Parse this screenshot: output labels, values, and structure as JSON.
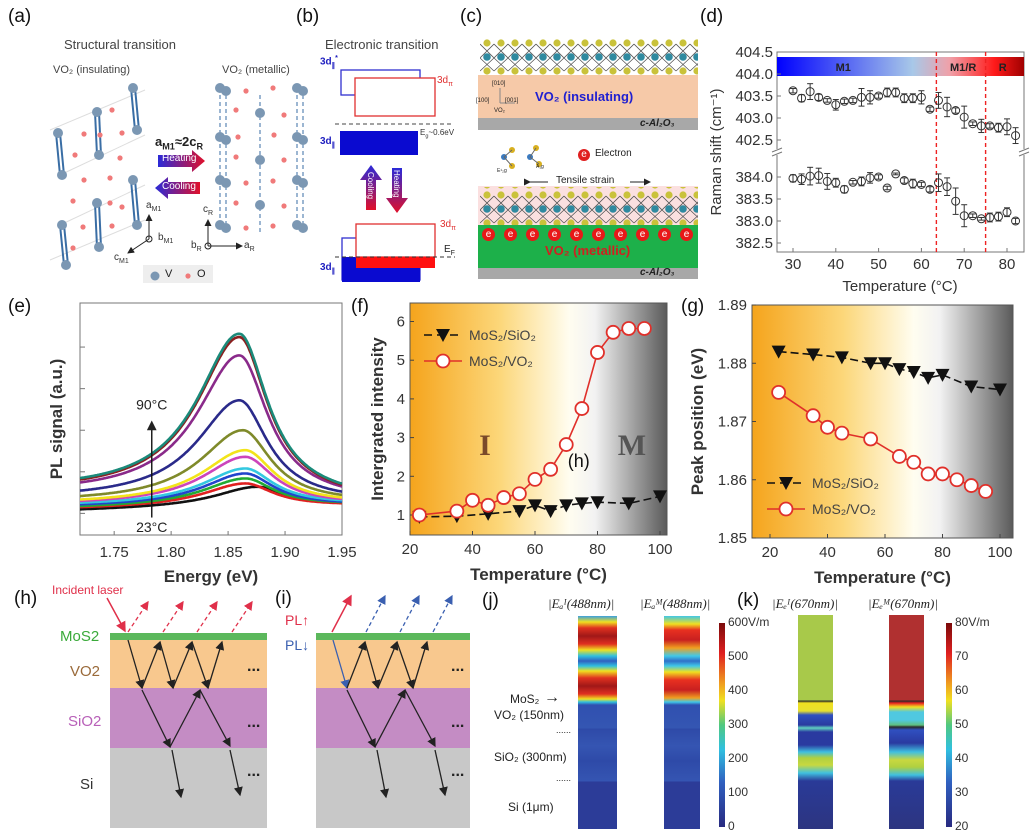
{
  "panel_labels": {
    "a": "(a)",
    "b": "(b)",
    "c": "(c)",
    "d": "(d)",
    "e": "(e)",
    "f": "(f)",
    "g": "(g)",
    "h": "(h)",
    "i": "(i)",
    "j": "(j)",
    "k": "(k)"
  },
  "a": {
    "title": "Structural transition",
    "insulating": "VO₂ (insulating)",
    "metallic": "VO₂ (metallic)",
    "relation": {
      "a": "a",
      "a_sub": "M1",
      "mid": "≈2c",
      "c_sub": "R"
    },
    "heating": "Heating",
    "cooling": "Cooling",
    "axes_m1": {
      "a": "a",
      "a_sub": "M1",
      "b": "b",
      "b_sub": "M1",
      "c": "c",
      "c_sub": "M1"
    },
    "axes_r": {
      "c": "c",
      "c_sub": "R",
      "b": "b",
      "b_sub": "R",
      "a": "a",
      "a_sub": "R"
    },
    "legend": {
      "v": "V",
      "o": "O"
    },
    "colors": {
      "v_atom": "#7b97b3",
      "o_atom": "#f07a7a",
      "bond": "#3a6ea5"
    }
  },
  "b": {
    "title": "Electronic transition",
    "d_par_star": {
      "main": "3d",
      "sub": "∥",
      "sup": "*"
    },
    "d_pi_top": {
      "main": "3d",
      "sub": "π"
    },
    "gap": {
      "main": "E",
      "sub": "g",
      "rest": "~0.6eV"
    },
    "d_par_top": {
      "main": "3d",
      "sub": "∥"
    },
    "cooling": "Cooling",
    "heating": "Heating",
    "d_pi_bottom": {
      "main": "3d",
      "sub": "π"
    },
    "ef": {
      "main": "E",
      "sub": "F"
    },
    "d_par_bottom": {
      "main": "3d",
      "sub": "∥"
    }
  },
  "c": {
    "insulating": "VO₂ (insulating)",
    "metallic": "VO₂ (metallic)",
    "substrate_top": "c-Al₂O₃",
    "substrate_bottom": "c-Al₂O₃",
    "axes": {
      "y": "[010]",
      "x": "[100]",
      "z": "[001]",
      "name": "VO₂"
    },
    "modes": {
      "e2g": "E¹₂g",
      "a1g": "A₁g"
    },
    "electron_symbol": "e",
    "electron_label": "Electron",
    "strain": "Tensile strain"
  },
  "h": {
    "incident": "Incident laser",
    "layers": {
      "mos2": "MoS2",
      "vo2": "VO2",
      "sio2": "SiO2",
      "si": "Si"
    },
    "dots": "..."
  },
  "i": {
    "pl_up": "PL↑",
    "pl_down": "PL↓",
    "dots": "..."
  },
  "j": {
    "titles": [
      "|Eₐᴵ(488nm)|",
      "|Eₐᴹ(488nm)|"
    ],
    "layers": {
      "mos2": "MoS₂",
      "vo2": "VO₂ (150nm)",
      "sep1": "......",
      "sio2": "SiO₂ (300nm)",
      "sep2": "......",
      "si": "Si (1μm)"
    },
    "colorbar_ticks": [
      "600V/m",
      "500",
      "400",
      "300",
      "200",
      "100",
      "0"
    ]
  },
  "k": {
    "titles": [
      "|Eₑᴵ(670nm)|",
      "|Eₑᴹ(670nm)|"
    ],
    "colorbar_ticks": [
      "80V/m",
      "70",
      "60",
      "50",
      "40",
      "30",
      "20"
    ]
  },
  "chart_data": [
    {
      "panel": "d",
      "type": "scatter",
      "xlabel": "Temperature (°C)",
      "ylabel": "Raman shift (cm⁻¹)",
      "xlim": [
        26,
        84
      ],
      "x_tick_labels": [
        "30",
        "40",
        "50",
        "60",
        "70",
        "80"
      ],
      "y_tick_labels_upper": [
        "404.5",
        "404.0",
        "403.5",
        "403.0",
        "402.5"
      ],
      "y_tick_labels_lower": [
        "384.0",
        "383.5",
        "383.0",
        "382.5"
      ],
      "broken_y_axis": true,
      "phase_bar": {
        "labels": [
          "M1",
          "M1/R",
          "R"
        ],
        "boundaries": [
          63.5,
          75
        ]
      },
      "x": [
        30,
        32,
        34,
        36,
        38,
        40,
        42,
        44,
        46,
        48,
        50,
        52,
        54,
        56,
        58,
        60,
        62,
        64,
        66,
        68,
        70,
        72,
        74,
        76,
        78,
        80,
        82
      ],
      "series": [
        {
          "values": [
            403.62,
            403.45,
            403.6,
            403.47,
            403.4,
            403.3,
            403.38,
            403.4,
            403.47,
            403.47,
            403.5,
            403.58,
            403.58,
            403.45,
            403.45,
            403.47,
            403.2,
            403.4,
            403.25,
            403.17,
            403.02,
            402.87,
            402.82,
            402.82,
            402.78,
            402.8,
            402.6
          ],
          "errors": [
            0.05,
            0.08,
            0.18,
            0.07,
            0.04,
            0.12,
            0.05,
            0.05,
            0.2,
            0.15,
            0.05,
            0.1,
            0.1,
            0.1,
            0.1,
            0.15,
            0.05,
            0.18,
            0.22,
            0.06,
            0.25,
            0.04,
            0.15,
            0.05,
            0.1,
            0.18,
            0.18
          ]
        },
        {
          "values": [
            383.97,
            383.95,
            384.02,
            384.03,
            383.9,
            383.87,
            383.72,
            383.88,
            383.9,
            383.98,
            384.0,
            383.75,
            384.07,
            383.92,
            383.85,
            383.83,
            383.72,
            383.87,
            383.78,
            383.45,
            383.12,
            383.12,
            383.05,
            383.08,
            383.1,
            383.2,
            383.0
          ],
          "errors": [
            0.08,
            0.12,
            0.2,
            0.17,
            0.18,
            0.1,
            0.08,
            0.04,
            0.1,
            0.12,
            0.05,
            0.04,
            0.02,
            0.06,
            0.1,
            0.05,
            0.06,
            0.2,
            0.2,
            0.3,
            0.25,
            0.04,
            0.03,
            0.1,
            0.1,
            0.1,
            0.06
          ]
        }
      ],
      "phase_lines": [
        63.5,
        75
      ],
      "colors": {
        "markers": "#333333",
        "phase_lines": "#ee2222"
      }
    },
    {
      "panel": "e",
      "type": "line",
      "xlabel": "Energy (eV)",
      "ylabel": "PL signal (a.u.)",
      "xlim": [
        1.72,
        1.95
      ],
      "ylim": [
        0.48,
        6.06
      ],
      "x_tick_labels": [
        "1.75",
        "1.80",
        "1.85",
        "1.90",
        "1.95"
      ],
      "annotations": {
        "high": "90°C",
        "low": "23°C"
      },
      "series": [
        {
          "color": "#111111",
          "peak_energy": 1.875,
          "peak": 1.64,
          "left": 1.06,
          "right": 1.2
        },
        {
          "color": "#e02020",
          "peak_energy": 1.865,
          "peak": 1.72,
          "left": 1.1,
          "right": 1.18
        },
        {
          "color": "#22aa33",
          "peak_energy": 1.865,
          "peak": 1.84,
          "left": 1.12,
          "right": 1.2
        },
        {
          "color": "#2244cc",
          "peak_energy": 1.865,
          "peak": 1.96,
          "left": 1.15,
          "right": 1.2
        },
        {
          "color": "#33c8e0",
          "peak_energy": 1.865,
          "peak": 2.08,
          "left": 1.18,
          "right": 1.22
        },
        {
          "color": "#cc44bb",
          "peak_energy": 1.865,
          "peak": 2.36,
          "left": 1.2,
          "right": 1.22
        },
        {
          "color": "#f2e41a",
          "peak_energy": 1.865,
          "peak": 2.52,
          "left": 1.22,
          "right": 1.24
        },
        {
          "color": "#7f8a2a",
          "peak_energy": 1.863,
          "peak": 3.0,
          "left": 1.26,
          "right": 1.26
        },
        {
          "color": "#2a2a8a",
          "peak_energy": 1.86,
          "peak": 3.72,
          "left": 1.32,
          "right": 1.28
        },
        {
          "color": "#8a2a8a",
          "peak_energy": 1.86,
          "peak": 4.8,
          "left": 1.42,
          "right": 1.3
        },
        {
          "color": "#8a2020",
          "peak_energy": 1.86,
          "peak": 5.24,
          "left": 1.45,
          "right": 1.3
        },
        {
          "color": "#1a8a7a",
          "peak_energy": 1.86,
          "peak": 5.32,
          "left": 1.48,
          "right": 1.32
        }
      ]
    },
    {
      "panel": "f",
      "type": "line",
      "xlabel": "Temperature (°C)",
      "ylabel": "Intergrated intensity",
      "xlim": [
        20,
        102
      ],
      "ylim": [
        0.5,
        6.5
      ],
      "x_tick_labels": [
        "20",
        "40",
        "60",
        "80",
        "100"
      ],
      "y_tick_labels": [
        "1",
        "2",
        "3",
        "4",
        "5",
        "6"
      ],
      "region_labels": {
        "insulating": "I",
        "metallic": "M"
      },
      "annotation": "(h)",
      "legend_position": "top-left",
      "series": [
        {
          "name": "MoS₂/SiO₂",
          "marker": "triangle-down",
          "color": "#111111",
          "x": [
            23,
            35,
            45,
            55,
            60,
            65,
            70,
            75,
            80,
            90,
            100
          ],
          "values": [
            0.95,
            0.97,
            1.03,
            1.1,
            1.25,
            1.1,
            1.25,
            1.3,
            1.33,
            1.3,
            1.48
          ]
        },
        {
          "name": "MoS₂/VO₂",
          "marker": "circle-open",
          "color": "#e0302a",
          "x": [
            23,
            35,
            40,
            45,
            50,
            55,
            60,
            65,
            70,
            75,
            80,
            85,
            90,
            95
          ],
          "values": [
            1.0,
            1.1,
            1.38,
            1.25,
            1.45,
            1.55,
            1.92,
            2.18,
            2.82,
            3.75,
            5.2,
            5.72,
            5.82,
            5.82
          ]
        }
      ]
    },
    {
      "panel": "g",
      "type": "line",
      "xlabel": "Temperature (°C)",
      "ylabel": "Peak position (eV)",
      "xlim": [
        14,
        104
      ],
      "ylim": [
        1.85,
        1.89
      ],
      "x_tick_labels": [
        "20",
        "40",
        "60",
        "80",
        "100"
      ],
      "y_tick_labels": [
        "1.85",
        "1.86",
        "1.87",
        "1.88",
        "1.89"
      ],
      "legend_position": "bottom-left",
      "series": [
        {
          "name": "MoS₂/SiO₂",
          "marker": "triangle-down",
          "color": "#111111",
          "x": [
            23,
            35,
            45,
            55,
            60,
            65,
            70,
            75,
            80,
            90,
            100
          ],
          "values": [
            1.882,
            1.8815,
            1.881,
            1.88,
            1.88,
            1.879,
            1.8785,
            1.8775,
            1.878,
            1.876,
            1.8755
          ]
        },
        {
          "name": "MoS₂/VO₂",
          "marker": "circle-open",
          "color": "#e0302a",
          "x": [
            23,
            35,
            40,
            45,
            55,
            65,
            70,
            75,
            80,
            85,
            90,
            95
          ],
          "values": [
            1.875,
            1.871,
            1.869,
            1.868,
            1.867,
            1.864,
            1.863,
            1.861,
            1.861,
            1.86,
            1.859,
            1.858
          ]
        }
      ]
    }
  ]
}
